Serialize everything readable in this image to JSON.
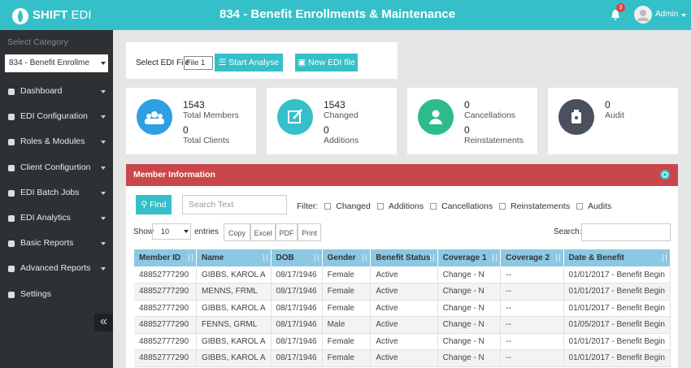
{
  "header": {
    "logo_bold": "SHIFT",
    "logo_light": "EDI",
    "title": "834 - Benefit Enrollments & Maintenance",
    "notifications": "3",
    "user": "Admin"
  },
  "sidebar": {
    "label": "Select Category",
    "category": "834 - Benefit Enrollme",
    "menu": [
      "Dashboard",
      "EDI Configuration",
      "Roles & Modules",
      "Client Configurtion",
      "EDI Batch Jobs",
      "EDI Analytics",
      "Basic Reports",
      "Advanced Reports",
      "Settings"
    ]
  },
  "toolbar": {
    "label": "Select EDI File",
    "file": "File 1",
    "analyse": "Start Analyse",
    "new_file": "New EDI file"
  },
  "stats": [
    {
      "value1": "1543",
      "label1": "Total Members",
      "value2": "0",
      "label2": "Total Clients"
    },
    {
      "value1": "1543",
      "label1": "Changed",
      "value2": "0",
      "label2": "Additions"
    },
    {
      "value1": "0",
      "label1": "Cancellations",
      "value2": "0",
      "label2": "Reinstatements"
    },
    {
      "value1": "0",
      "label1": "Audit"
    }
  ],
  "panel": {
    "title": "Member Information",
    "find": "Find",
    "search_placeholder": "Search Text",
    "filter_label": "Filter:",
    "filters": [
      "Changed",
      "Additions",
      "Cancellations",
      "Reinstatements",
      "Audits"
    ],
    "show": "Show",
    "entries_count": "10",
    "entries": "entries",
    "buttons": [
      "Copy",
      "Excel",
      "PDF",
      "Print"
    ],
    "search_label": "Search:"
  },
  "table": {
    "columns": [
      "Member ID",
      "Name",
      "DOB",
      "Gender",
      "Benefit Status",
      "Coverage 1",
      "Coverage 2",
      "Date & Benefit"
    ],
    "rows": [
      [
        "48852777290",
        "GIBBS, KAROL A",
        "08/17/1946",
        "Female",
        "Active",
        "Change - N",
        "--",
        "01/01/2017 - Benefit Begin"
      ],
      [
        "48852777290",
        "MENNS, FRML",
        "08/17/1946",
        "Female",
        "Active",
        "Change - N",
        "--",
        "01/01/2017 - Benefit Begin"
      ],
      [
        "48852777290",
        "GIBBS, KAROL A",
        "08/17/1946",
        "Female",
        "Active",
        "Change - N",
        "--",
        "01/01/2017 - Benefit Begin"
      ],
      [
        "48852777290",
        "FENNS, GRML",
        "08/17/1946",
        "Male",
        "Active",
        "Change - N",
        "--",
        "01/05/2017 - Benefit Begin"
      ],
      [
        "48852777290",
        "GIBBS, KAROL A",
        "08/17/1946",
        "Female",
        "Active",
        "Change - N",
        "--",
        "01/01/2017 - Benefit Begin"
      ],
      [
        "48852777290",
        "GIBBS, KAROL A",
        "08/17/1946",
        "Female",
        "Active",
        "Change - N",
        "--",
        "01/01/2017 - Benefit Begin"
      ]
    ]
  }
}
